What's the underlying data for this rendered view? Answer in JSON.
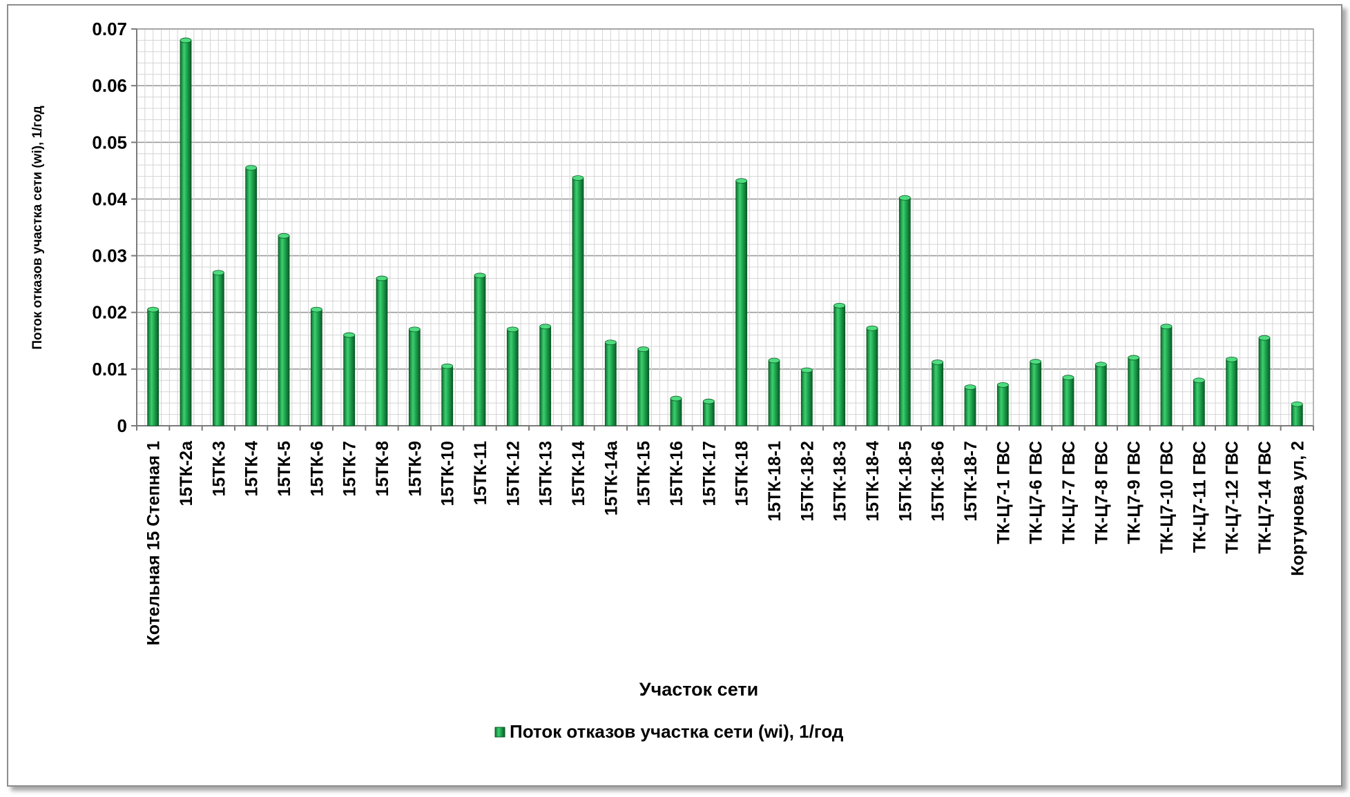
{
  "chart_data": {
    "type": "bar",
    "title": "",
    "xlabel": "Участок сети",
    "ylabel": "Поток отказов участка сети (wi), 1/год",
    "ylim": [
      0,
      0.07
    ],
    "yticks": [
      "0",
      "0.01",
      "0.02",
      "0.03",
      "0.04",
      "0.05",
      "0.06",
      "0.07"
    ],
    "grid": true,
    "legend": "bottom",
    "categories": [
      "Котельная 15 Степная 1",
      "15ТК-2а",
      "15ТК-3",
      "15ТК-4",
      "15ТК-5",
      "15ТК-6",
      "15ТК-7",
      "15ТК-8",
      "15ТК-9",
      "15ТК-10",
      "15ТК-11",
      "15ТК-12",
      "15ТК-13",
      "15ТК-14",
      "15ТК-14а",
      "15ТК-15",
      "15ТК-16",
      "15ТК-17",
      "15ТК-18",
      "15ТК-18-1",
      "15ТК-18-2",
      "15ТК-18-3",
      "15ТК-18-4",
      "15ТК-18-5",
      "15ТК-18-6",
      "15ТК-18-7",
      "ТК-Ц7-1 ГВС",
      "ТК-Ц7-6 ГВС",
      "ТК-Ц7-7 ГВС",
      "ТК-Ц7-8 ГВС",
      "ТК-Ц7-9 ГВС",
      "ТК-Ц7-10 ГВС",
      "ТК-Ц7-11 ГВС",
      "ТК-Ц7-12 ГВС",
      "ТК-Ц7-14 ГВС",
      "Кортунова ул, 2"
    ],
    "series": [
      {
        "name": "Поток отказов участка сети (wi), 1/год",
        "color": "#1a9a48",
        "values": [
          0.0205,
          0.068,
          0.027,
          0.0455,
          0.0335,
          0.0205,
          0.016,
          0.026,
          0.017,
          0.0105,
          0.0265,
          0.017,
          0.0175,
          0.0437,
          0.0147,
          0.0135,
          0.0048,
          0.0043,
          0.0432,
          0.0115,
          0.0098,
          0.0212,
          0.0172,
          0.0402,
          0.0112,
          0.0068,
          0.0072,
          0.0113,
          0.0085,
          0.0108,
          0.012,
          0.0175,
          0.008,
          0.0117,
          0.0155,
          0.0038
        ]
      }
    ]
  }
}
